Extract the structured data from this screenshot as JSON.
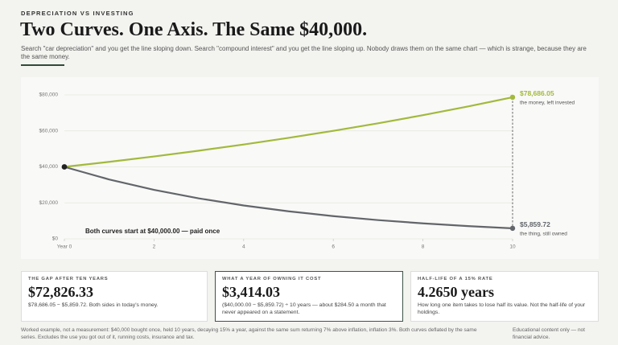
{
  "header": {
    "kicker": "DEPRECIATION VS INVESTING",
    "title": "Two Curves. One Axis. The Same $40,000.",
    "subtitle": "Search \"car depreciation\" and you get the line sloping down. Search \"compound interest\" and you get the line sloping up. Nobody draws them on the same chart — which is strange, because they are the same money."
  },
  "chart_data": {
    "type": "line",
    "x": [
      0,
      1,
      2,
      3,
      4,
      5,
      6,
      7,
      8,
      9,
      10
    ],
    "xlim": [
      0,
      10
    ],
    "xticks": [
      {
        "value": 0,
        "label": "Year 0"
      },
      2,
      4,
      6,
      8,
      10
    ],
    "ylim": [
      0,
      80000
    ],
    "yticks": [
      {
        "value": 0,
        "label": "$0"
      },
      {
        "value": 20000,
        "label": "$20,000"
      },
      {
        "value": 40000,
        "label": "$40,000"
      },
      {
        "value": 60000,
        "label": "$60,000"
      },
      {
        "value": 80000,
        "label": "$80,000"
      }
    ],
    "grid": true,
    "series": [
      {
        "name": "the money, left invested",
        "color": "#a2b93c",
        "values": [
          40000,
          42800,
          45796,
          49001.72,
          52431.84,
          56102.07,
          60029.21,
          64231.26,
          68727.45,
          73538.37,
          78686.05
        ],
        "value_labels": [
          null,
          null,
          null,
          null,
          null,
          null,
          null,
          null,
          null,
          null,
          "$78,686.05"
        ]
      },
      {
        "name": "the thing, still owned",
        "color": "#62666b",
        "values": [
          40000,
          33009.71,
          27240.99,
          22480.41,
          18551.84,
          15309.75,
          12634.33,
          10426.39,
          8604.3,
          7100.62,
          5859.72
        ],
        "value_labels": [
          null,
          null,
          null,
          null,
          null,
          null,
          null,
          null,
          null,
          null,
          "$5,859.72"
        ]
      }
    ],
    "start_color": "#222222",
    "annotation": "Both curves start at $40,000.00 — paid once"
  },
  "cards": [
    {
      "label": "THE GAP AFTER TEN YEARS",
      "value": "$72,826.33",
      "note": "$78,686.05 − $5,859.72. Both sides in today's money."
    },
    {
      "label": "WHAT A YEAR OF OWNING IT COST",
      "value": "$3,414.03",
      "note": "($40,000.00 − $5,859.72) ÷ 10 years — about $284.50 a month that never appeared on a statement."
    },
    {
      "label": "HALF-LIFE OF A 15% RATE",
      "value": "4.2650 years",
      "note": "How long one item takes to lose half its value. Not the half-life of your holdings."
    }
  ],
  "footer": {
    "method": "Worked example, not a measurement: $40,000 bought once, held 10 years, decaying 15% a year, against the same sum returning 7% above inflation, inflation 3%. Both curves deflated by the same series. Excludes the use you got out of it, running costs, insurance and tax.",
    "disclaimer": "Educational content only — not financial advice."
  }
}
